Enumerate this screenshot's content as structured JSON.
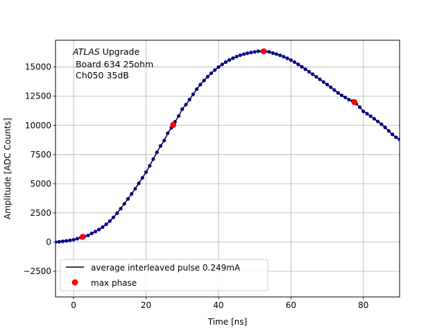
{
  "chart_data": {
    "type": "scatter",
    "xlabel": "Time [ns]",
    "ylabel": "Amplitude [ADC Counts]",
    "xlim": [
      -5,
      90
    ],
    "ylim": [
      -4700,
      17300
    ],
    "grid": true,
    "x_ticks": [
      0,
      20,
      40,
      60,
      80
    ],
    "y_ticks": [
      -2500,
      0,
      2500,
      5000,
      7500,
      10000,
      12500,
      15000
    ],
    "x_tick_labels": [
      "0",
      "20",
      "40",
      "60",
      "80"
    ],
    "y_tick_labels": [
      "−2500",
      "0",
      "2500",
      "5000",
      "7500",
      "10000",
      "12500",
      "15000"
    ],
    "annotation": {
      "line1_italic": "ATLAS",
      "line1_rest": " Upgrade",
      "line2": " Board 634 25ohm",
      "line3": " Ch050 35dB"
    },
    "legend": {
      "placement": "lower-left",
      "entries": [
        {
          "label": "average interleaved pulse 0.249mA",
          "style": "line",
          "color": "#000000"
        },
        {
          "label": "max phase",
          "style": "marker",
          "color": "#ff0000"
        }
      ]
    },
    "pulse": {
      "name": "average interleaved pulse 0.249mA",
      "x_start": -5,
      "x_end": 90,
      "x_step": 1.0,
      "line_color": "#000000",
      "marker_color": "#00008b",
      "keypoints_x": [
        -5,
        0,
        2.5,
        5,
        10,
        15,
        20,
        25,
        27.5,
        30,
        35,
        40,
        45,
        50,
        52.5,
        55,
        60,
        65,
        70,
        75,
        77.5,
        80,
        85,
        90
      ],
      "keypoints_y": [
        0,
        200,
        450,
        750,
        1800,
        3700,
        6000,
        8700,
        10050,
        11400,
        13500,
        15000,
        15900,
        16300,
        16350,
        16200,
        15600,
        14600,
        13500,
        12400,
        12000,
        11200,
        10100,
        8800
      ]
    },
    "max_phase": {
      "name": "max phase",
      "color": "#ff0000",
      "x": [
        2.5,
        27.5,
        52.5,
        77.5
      ],
      "y": [
        450,
        10050,
        16350,
        12000
      ]
    }
  }
}
